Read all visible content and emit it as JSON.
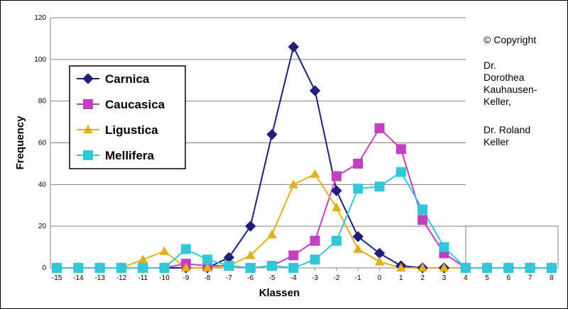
{
  "chart_data": {
    "type": "line",
    "xlabel": "Klassen",
    "ylabel": "Frequency",
    "x": [
      -15,
      -14,
      -13,
      -12,
      -11,
      -10,
      -9,
      -8,
      -7,
      -6,
      -5,
      -4,
      -3,
      -2,
      -1,
      0,
      1,
      2,
      3,
      4,
      5,
      6,
      7,
      8
    ],
    "ylim": [
      0,
      120
    ],
    "yticks": [
      0,
      20,
      40,
      60,
      80,
      100,
      120
    ],
    "grid": true,
    "legend_position": "top-left",
    "series": [
      {
        "name": "Carnica",
        "color": "#1f1f7a",
        "marker": "diamond",
        "values": [
          0,
          0,
          0,
          0,
          0,
          0,
          0,
          0,
          5,
          20,
          64,
          106,
          85,
          37,
          15,
          7,
          1,
          0,
          0,
          0,
          0,
          0,
          0,
          0
        ]
      },
      {
        "name": "Caucasica",
        "color": "#c040c0",
        "marker": "square",
        "values": [
          0,
          0,
          0,
          0,
          0,
          0,
          2,
          1,
          1,
          0,
          1,
          6,
          13,
          44,
          50,
          67,
          57,
          23,
          7,
          0,
          0,
          0,
          0,
          0
        ]
      },
      {
        "name": "Ligustica",
        "color": "#e0b020",
        "marker": "triangle",
        "values": [
          0,
          0,
          0,
          0,
          4,
          8,
          0,
          0,
          1,
          6,
          16,
          40,
          45,
          29,
          9,
          3,
          0,
          0,
          0,
          0,
          0,
          0,
          0,
          0
        ]
      },
      {
        "name": "Mellifera",
        "color": "#30c8d8",
        "marker": "square",
        "values": [
          0,
          0,
          0,
          0,
          0,
          0,
          9,
          4,
          1,
          0,
          1,
          0,
          4,
          13,
          38,
          39,
          46,
          28,
          10,
          0,
          0,
          0,
          0,
          0
        ]
      }
    ]
  },
  "copyright": {
    "line1": "© Copyright",
    "line2": "Dr.",
    "line3": "Dorothea",
    "line4": "Kauhausen-",
    "line5": "Keller,",
    "line6": "Dr. Roland",
    "line7": "Keller"
  }
}
